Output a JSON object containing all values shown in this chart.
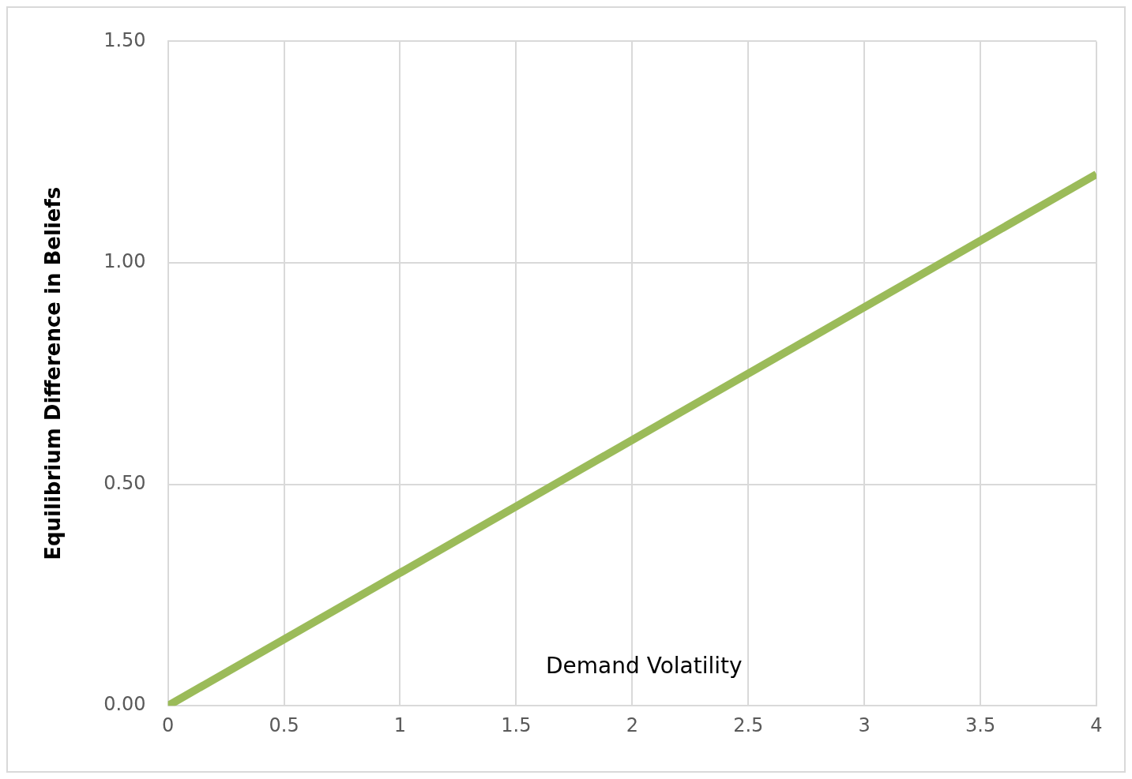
{
  "chart_data": {
    "type": "line",
    "xlabel": "Demand Volatility",
    "ylabel": "Equilibrium Difference in Beliefs",
    "series": [
      {
        "color": "#9bbb59",
        "x": [
          0,
          4
        ],
        "values": [
          0,
          1.2
        ]
      }
    ],
    "xlim": [
      0,
      4
    ],
    "xticks": [
      0,
      0.5,
      1,
      1.5,
      2,
      2.5,
      3,
      3.5,
      4
    ],
    "ylim": [
      0,
      1.5
    ],
    "yticks": [
      {
        "value": 0,
        "label": "0.00"
      },
      {
        "value": 0.5,
        "label": "0.50"
      },
      {
        "value": 1,
        "label": "1.00"
      },
      {
        "value": 1.5,
        "label": "1.50"
      }
    ],
    "grid": true,
    "legend": false,
    "marker": "none",
    "line_style": "solid"
  }
}
